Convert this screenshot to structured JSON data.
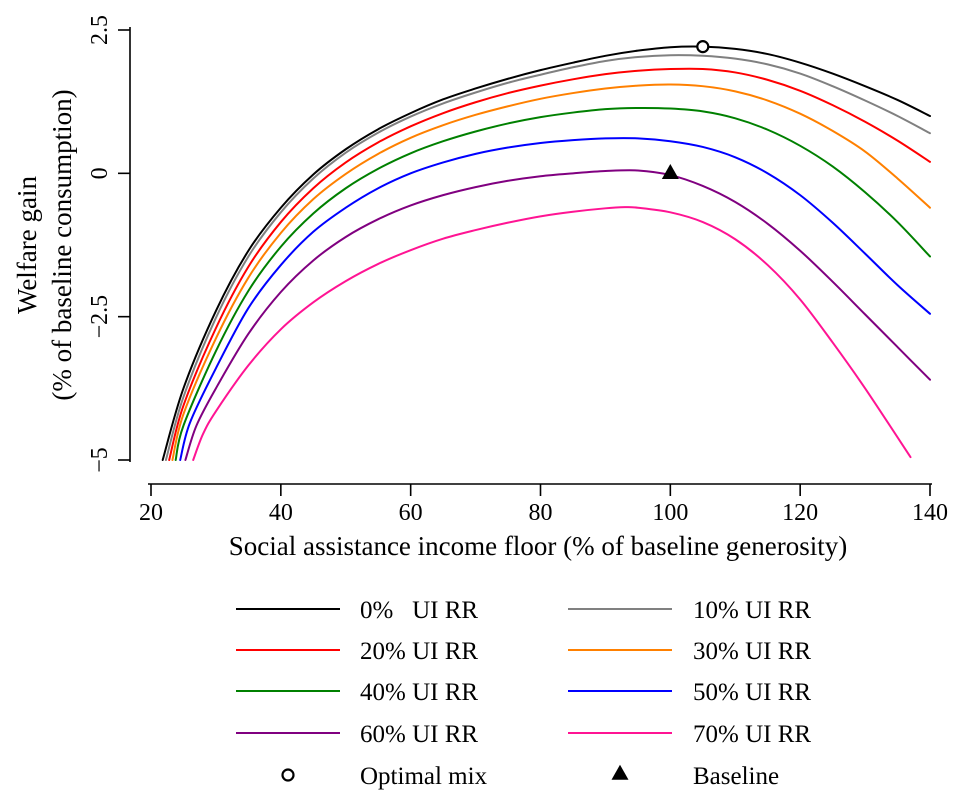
{
  "chart_data": {
    "type": "line",
    "xlabel": "Social assistance income floor (% of baseline generosity)",
    "ylabel_line1": "Welfare gain",
    "ylabel_line2": "(% of baseline consumption)",
    "xlim": [
      20,
      140
    ],
    "ylim": [
      -5,
      2.5
    ],
    "xticks": [
      20,
      40,
      60,
      80,
      100,
      120,
      140
    ],
    "yticks": [
      -5,
      -2.5,
      0,
      2.5
    ],
    "xtick_labels": [
      "20",
      "40",
      "60",
      "80",
      "100",
      "120",
      "140"
    ],
    "ytick_labels": [
      "−5",
      "−2.5",
      "0",
      "2.5"
    ],
    "grid": false,
    "legend_position": "bottom",
    "series": [
      {
        "name": "0%   UI RR",
        "color": "#000000",
        "x": [
          21.8,
          25,
          30,
          35,
          40,
          45,
          50,
          55,
          60,
          65,
          70,
          75,
          80,
          85,
          90,
          95,
          100,
          105,
          110,
          115,
          120,
          125,
          130,
          135,
          140
        ],
        "y": [
          -5.0,
          -3.75,
          -2.4,
          -1.35,
          -0.6,
          -0.02,
          0.42,
          0.77,
          1.05,
          1.29,
          1.48,
          1.65,
          1.8,
          1.93,
          2.05,
          2.14,
          2.2,
          2.21,
          2.17,
          2.08,
          1.93,
          1.74,
          1.52,
          1.28,
          1.0
        ]
      },
      {
        "name": "10% UI RR",
        "color": "#808080",
        "x": [
          22.3,
          25,
          30,
          35,
          40,
          45,
          50,
          55,
          60,
          65,
          70,
          75,
          80,
          85,
          90,
          95,
          100,
          105,
          110,
          115,
          120,
          125,
          130,
          135,
          140
        ],
        "y": [
          -5.0,
          -3.9,
          -2.52,
          -1.45,
          -0.68,
          -0.09,
          0.36,
          0.71,
          0.99,
          1.22,
          1.41,
          1.58,
          1.72,
          1.85,
          1.96,
          2.03,
          2.06,
          2.05,
          2.0,
          1.9,
          1.74,
          1.52,
          1.27,
          1.0,
          0.7
        ]
      },
      {
        "name": "20% UI RR",
        "color": "#ff0000",
        "x": [
          22.8,
          25,
          30,
          35,
          40,
          45,
          50,
          55,
          60,
          65,
          70,
          75,
          80,
          85,
          90,
          95,
          100,
          105,
          110,
          115,
          120,
          125,
          130,
          135,
          140
        ],
        "y": [
          -5.0,
          -4.05,
          -2.7,
          -1.63,
          -0.85,
          -0.26,
          0.19,
          0.54,
          0.82,
          1.05,
          1.24,
          1.4,
          1.53,
          1.64,
          1.73,
          1.79,
          1.82,
          1.82,
          1.76,
          1.63,
          1.44,
          1.19,
          0.9,
          0.57,
          0.2
        ]
      },
      {
        "name": "30% UI RR",
        "color": "#ff8000",
        "x": [
          23.3,
          25,
          30,
          35,
          40,
          45,
          50,
          55,
          60,
          65,
          70,
          75,
          80,
          85,
          90,
          95,
          100,
          105,
          110,
          115,
          120,
          125,
          130,
          135,
          140
        ],
        "y": [
          -5.0,
          -4.2,
          -2.88,
          -1.82,
          -1.04,
          -0.45,
          -0.01,
          0.34,
          0.62,
          0.84,
          1.02,
          1.17,
          1.3,
          1.4,
          1.48,
          1.53,
          1.55,
          1.52,
          1.43,
          1.27,
          1.04,
          0.74,
          0.38,
          -0.09,
          -0.6
        ]
      },
      {
        "name": "40% UI RR",
        "color": "#008000",
        "x": [
          23.8,
          25,
          30,
          35,
          40,
          45,
          50,
          55,
          60,
          65,
          70,
          75,
          80,
          85,
          90,
          95,
          100,
          105,
          110,
          115,
          120,
          125,
          130,
          135,
          140
        ],
        "y": [
          -5.0,
          -4.4,
          -3.1,
          -2.05,
          -1.28,
          -0.7,
          -0.26,
          0.08,
          0.35,
          0.56,
          0.73,
          0.87,
          0.98,
          1.06,
          1.12,
          1.14,
          1.13,
          1.08,
          0.96,
          0.76,
          0.48,
          0.12,
          -0.33,
          -0.85,
          -1.45
        ]
      },
      {
        "name": "50% UI RR",
        "color": "#0000ff",
        "x": [
          24.5,
          26,
          30,
          35,
          40,
          45,
          50,
          55,
          60,
          65,
          70,
          75,
          80,
          85,
          90,
          95,
          100,
          105,
          110,
          115,
          120,
          125,
          130,
          135,
          140
        ],
        "y": [
          -5.0,
          -4.35,
          -3.4,
          -2.35,
          -1.6,
          -1.02,
          -0.6,
          -0.26,
          0.0,
          0.19,
          0.34,
          0.45,
          0.53,
          0.58,
          0.61,
          0.61,
          0.56,
          0.46,
          0.28,
          0.0,
          -0.38,
          -0.86,
          -1.4,
          -1.95,
          -2.45
        ]
      },
      {
        "name": "60% UI RR",
        "color": "#800080",
        "x": [
          25.3,
          27,
          30,
          35,
          40,
          45,
          50,
          55,
          60,
          65,
          70,
          75,
          80,
          85,
          90,
          95,
          100,
          105,
          110,
          115,
          120,
          125,
          130,
          135,
          140
        ],
        "y": [
          -5.0,
          -4.4,
          -3.75,
          -2.8,
          -2.07,
          -1.52,
          -1.11,
          -0.8,
          -0.56,
          -0.38,
          -0.24,
          -0.13,
          -0.05,
          0.0,
          0.04,
          0.05,
          -0.03,
          -0.22,
          -0.5,
          -0.88,
          -1.35,
          -1.89,
          -2.46,
          -3.03,
          -3.6
        ]
      },
      {
        "name": "70% UI RR",
        "color": "#ff1493",
        "x": [
          26.5,
          28,
          30,
          35,
          40,
          45,
          50,
          55,
          60,
          65,
          70,
          75,
          80,
          85,
          90,
          93,
          95,
          100,
          105,
          110,
          115,
          120,
          125,
          130,
          137
        ],
        "y": [
          -5.0,
          -4.55,
          -4.15,
          -3.35,
          -2.72,
          -2.25,
          -1.88,
          -1.58,
          -1.34,
          -1.14,
          -0.99,
          -0.86,
          -0.75,
          -0.67,
          -0.61,
          -0.59,
          -0.6,
          -0.68,
          -0.85,
          -1.15,
          -1.6,
          -2.2,
          -2.95,
          -3.75,
          -4.95
        ]
      }
    ],
    "markers": [
      {
        "name": "Optimal mix",
        "shape": "circle",
        "x": 105,
        "y": 2.21
      },
      {
        "name": "Baseline",
        "shape": "triangle",
        "x": 100,
        "y": 0.0
      }
    ]
  }
}
